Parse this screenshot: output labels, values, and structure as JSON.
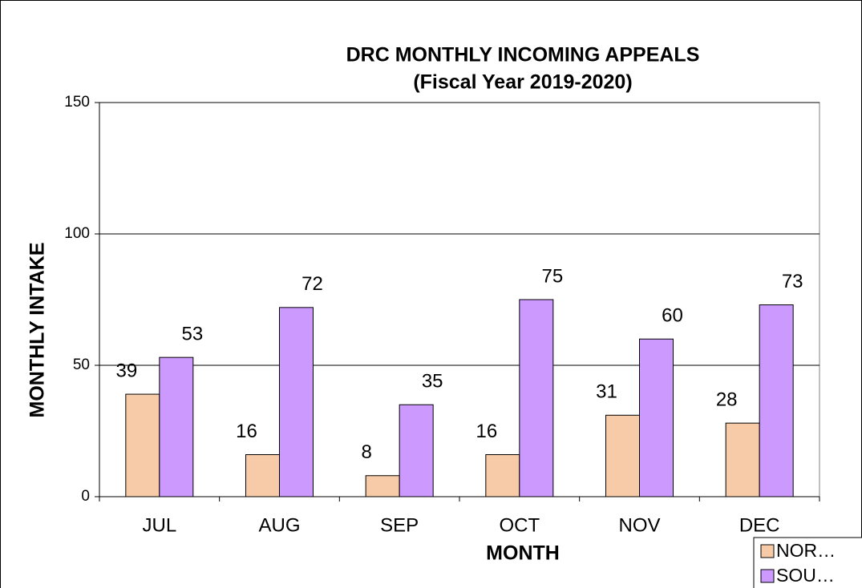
{
  "chart_data": {
    "type": "bar",
    "title": "DRC MONTHLY INCOMING APPEALS",
    "subtitle": "(Fiscal Year 2019-2020)",
    "x_label": "MONTH",
    "y_label": "MONTHLY INTAKE",
    "categories": [
      "JUL",
      "AUG",
      "SEP",
      "OCT",
      "NOV",
      "DEC"
    ],
    "series": [
      {
        "name": "NOR…",
        "color": "#f8cba8",
        "values": [
          39,
          16,
          8,
          16,
          31,
          28
        ]
      },
      {
        "name": "SOU…",
        "color": "#cc99ff",
        "values": [
          53,
          72,
          35,
          75,
          60,
          73
        ]
      }
    ],
    "ylim": [
      0,
      150
    ],
    "yticks": [
      0,
      50,
      100,
      150
    ],
    "grid": true,
    "legend": "bottom-right"
  }
}
